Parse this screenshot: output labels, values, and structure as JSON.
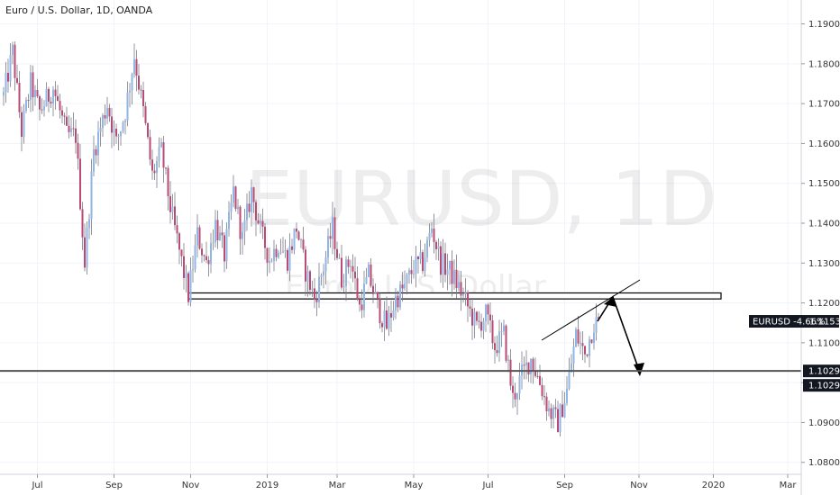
{
  "chart_data": {
    "type": "candlestick",
    "title": "Euro / U.S. Dollar, 1D, OANDA",
    "watermark_symbol": "EURUSD, 1D",
    "watermark_name": "Euro / U.S. Dollar",
    "ylim": [
      1.077,
      1.196
    ],
    "y_ticks": [
      "1.19000",
      "1.18000",
      "1.17000",
      "1.16000",
      "1.15000",
      "1.14000",
      "1.13000",
      "1.12000",
      "1.11000",
      "1.10000",
      "1.09000",
      "1.08000"
    ],
    "x_ticks": [
      "Jul",
      "Sep",
      "Nov",
      "2019",
      "Mar",
      "May",
      "Jul",
      "Sep",
      "Nov",
      "2020",
      "Mar"
    ],
    "price_tag": {
      "label": "EURUSD -4.66%",
      "value": "1.11538",
      "price": 1.11538
    },
    "horizontal_line": {
      "label": "1.10293",
      "price": 1.10293
    },
    "second_label": "1.10293",
    "resistance_zone": {
      "top": 1.1225,
      "bottom": 1.121
    },
    "series_points": [
      [
        0,
        1.172
      ],
      [
        4,
        1.183
      ],
      [
        8,
        1.163
      ],
      [
        12,
        1.175
      ],
      [
        16,
        1.168
      ],
      [
        22,
        1.174
      ],
      [
        28,
        1.162
      ],
      [
        32,
        1.162
      ],
      [
        36,
        1.13
      ],
      [
        40,
        1.158
      ],
      [
        46,
        1.17
      ],
      [
        50,
        1.16
      ],
      [
        54,
        1.168
      ],
      [
        58,
        1.182
      ],
      [
        62,
        1.168
      ],
      [
        66,
        1.152
      ],
      [
        70,
        1.158
      ],
      [
        74,
        1.144
      ],
      [
        78,
        1.133
      ],
      [
        82,
        1.122
      ],
      [
        86,
        1.137
      ],
      [
        90,
        1.13
      ],
      [
        94,
        1.14
      ],
      [
        98,
        1.132
      ],
      [
        102,
        1.148
      ],
      [
        106,
        1.136
      ],
      [
        110,
        1.148
      ],
      [
        114,
        1.138
      ],
      [
        118,
        1.131
      ],
      [
        122,
        1.135
      ],
      [
        126,
        1.131
      ],
      [
        130,
        1.139
      ],
      [
        134,
        1.128
      ],
      [
        138,
        1.121
      ],
      [
        142,
        1.129
      ],
      [
        146,
        1.139
      ],
      [
        150,
        1.126
      ],
      [
        154,
        1.131
      ],
      [
        158,
        1.119
      ],
      [
        162,
        1.127
      ],
      [
        166,
        1.119
      ],
      [
        170,
        1.114
      ],
      [
        174,
        1.121
      ],
      [
        178,
        1.124
      ],
      [
        182,
        1.129
      ],
      [
        186,
        1.13
      ],
      [
        190,
        1.139
      ],
      [
        194,
        1.13
      ],
      [
        198,
        1.128
      ],
      [
        202,
        1.124
      ],
      [
        206,
        1.119
      ],
      [
        210,
        1.114
      ],
      [
        214,
        1.117
      ],
      [
        218,
        1.109
      ],
      [
        222,
        1.112
      ],
      [
        226,
        1.096
      ],
      [
        230,
        1.102
      ],
      [
        234,
        1.106
      ],
      [
        238,
        1.1
      ],
      [
        242,
        1.093
      ],
      [
        246,
        1.09
      ],
      [
        250,
        1.098
      ],
      [
        254,
        1.112
      ],
      [
        258,
        1.107
      ],
      [
        262,
        1.115
      ]
    ],
    "candle_count": 265,
    "x_tick_bars": [
      15,
      49,
      83,
      117,
      148,
      182,
      215,
      249,
      282,
      315,
      348
    ]
  }
}
